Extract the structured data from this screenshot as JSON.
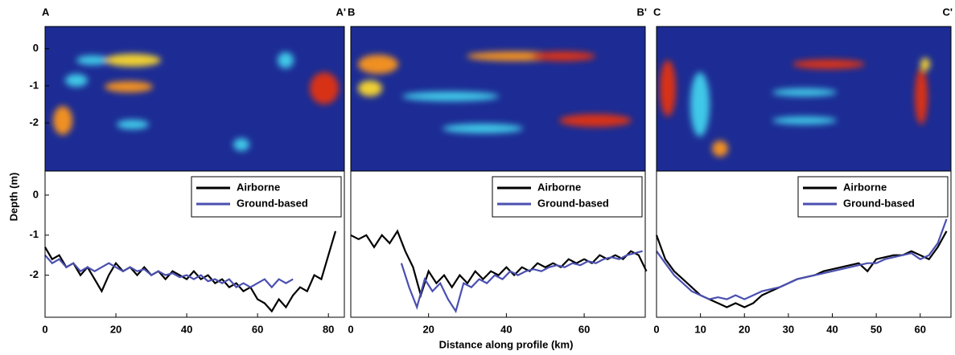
{
  "chart_data": [
    {
      "type": "heatmap",
      "start_label": "A",
      "end_label": "A'",
      "ylabel": "Depth (m)",
      "ylim": [
        -3.3,
        0.6
      ],
      "yticks": [
        0,
        -1,
        -2
      ]
    },
    {
      "type": "line",
      "xlim": [
        0,
        84.5
      ],
      "ylim": [
        -3.05,
        0.6
      ],
      "xticks": [
        0,
        20,
        40,
        60,
        80
      ],
      "yticks": [
        0,
        -1,
        -2
      ],
      "legend": "upper right",
      "series": [
        {
          "name": "Airborne",
          "color": "#000000",
          "x": [
            0,
            2,
            4,
            6,
            8,
            10,
            12,
            14,
            16,
            18,
            20,
            22,
            24,
            26,
            28,
            30,
            32,
            34,
            36,
            38,
            40,
            42,
            44,
            46,
            48,
            50,
            52,
            54,
            56,
            58,
            60,
            62,
            64,
            66,
            68,
            70,
            72,
            74,
            76,
            78,
            80,
            82
          ],
          "values": [
            -1.3,
            -1.6,
            -1.5,
            -1.8,
            -1.7,
            -2.0,
            -1.8,
            -2.1,
            -2.4,
            -2.0,
            -1.7,
            -1.9,
            -1.8,
            -2.0,
            -1.8,
            -2.0,
            -1.9,
            -2.1,
            -1.9,
            -2.0,
            -2.1,
            -1.9,
            -2.1,
            -2.0,
            -2.2,
            -2.1,
            -2.3,
            -2.2,
            -2.4,
            -2.3,
            -2.6,
            -2.7,
            -2.9,
            -2.6,
            -2.8,
            -2.5,
            -2.3,
            -2.4,
            -2.0,
            -2.1,
            -1.5,
            -0.9
          ]
        },
        {
          "name": "Ground-based",
          "color": "#4a4fb0",
          "x": [
            0,
            2,
            4,
            6,
            8,
            10,
            12,
            14,
            16,
            18,
            20,
            22,
            24,
            26,
            28,
            30,
            32,
            34,
            36,
            38,
            40,
            42,
            44,
            46,
            48,
            50,
            52,
            54,
            56,
            58,
            60,
            62,
            64,
            66,
            68,
            70
          ],
          "values": [
            -1.5,
            -1.7,
            -1.6,
            -1.8,
            -1.7,
            -1.9,
            -1.8,
            -1.9,
            -1.8,
            -1.7,
            -1.8,
            -1.9,
            -1.8,
            -1.9,
            -1.85,
            -2.0,
            -1.9,
            -2.0,
            -1.95,
            -2.05,
            -2.0,
            -2.1,
            -2.0,
            -2.15,
            -2.1,
            -2.2,
            -2.1,
            -2.3,
            -2.2,
            -2.3,
            -2.2,
            -2.1,
            -2.3,
            -2.1,
            -2.2,
            -2.1
          ]
        }
      ]
    },
    {
      "type": "heatmap",
      "start_label": "B",
      "end_label": "B'"
    },
    {
      "type": "line",
      "xlim": [
        0,
        75.7
      ],
      "ylim": [
        -3.05,
        0.6
      ],
      "xticks": [
        0,
        20,
        40,
        60
      ],
      "legend": "upper right",
      "xlabel": "Distance along profile (km)",
      "series": [
        {
          "name": "Airborne",
          "color": "#000000",
          "x": [
            0,
            2,
            4,
            6,
            8,
            10,
            12,
            14,
            16,
            18,
            20,
            22,
            24,
            26,
            28,
            30,
            32,
            34,
            36,
            38,
            40,
            42,
            44,
            46,
            48,
            50,
            52,
            54,
            56,
            58,
            60,
            62,
            64,
            66,
            68,
            70,
            72,
            74,
            76
          ],
          "values": [
            -1.0,
            -1.1,
            -1.0,
            -1.3,
            -1.0,
            -1.2,
            -0.9,
            -1.4,
            -1.8,
            -2.5,
            -1.9,
            -2.2,
            -2.0,
            -2.3,
            -2.0,
            -2.2,
            -1.9,
            -2.1,
            -1.9,
            -2.0,
            -1.8,
            -2.0,
            -1.8,
            -1.9,
            -1.7,
            -1.8,
            -1.7,
            -1.8,
            -1.6,
            -1.7,
            -1.6,
            -1.7,
            -1.5,
            -1.6,
            -1.5,
            -1.6,
            -1.4,
            -1.5,
            -1.9
          ]
        },
        {
          "name": "Ground-based",
          "color": "#4a4fb0",
          "x": [
            13,
            15,
            17,
            19,
            21,
            23,
            25,
            27,
            29,
            31,
            33,
            35,
            37,
            39,
            41,
            43,
            45,
            47,
            49,
            51,
            53,
            55,
            57,
            59,
            61,
            63,
            65,
            67,
            69,
            71,
            73,
            75
          ],
          "values": [
            -1.7,
            -2.3,
            -2.8,
            -2.1,
            -2.4,
            -2.2,
            -2.6,
            -2.9,
            -2.2,
            -2.3,
            -2.1,
            -2.2,
            -2.0,
            -2.1,
            -1.9,
            -2.0,
            -1.9,
            -1.85,
            -1.9,
            -1.8,
            -1.75,
            -1.8,
            -1.7,
            -1.75,
            -1.65,
            -1.7,
            -1.6,
            -1.55,
            -1.6,
            -1.5,
            -1.45,
            -1.4
          ]
        }
      ]
    },
    {
      "type": "heatmap",
      "start_label": "C",
      "end_label": "C'"
    },
    {
      "type": "line",
      "xlim": [
        0,
        67
      ],
      "ylim": [
        -3.05,
        0.6
      ],
      "xticks": [
        0,
        10,
        20,
        30,
        40,
        50,
        60
      ],
      "legend": "upper right",
      "series": [
        {
          "name": "Airborne",
          "color": "#000000",
          "x": [
            0,
            2,
            4,
            6,
            8,
            10,
            12,
            14,
            16,
            18,
            20,
            22,
            24,
            26,
            28,
            30,
            32,
            34,
            36,
            38,
            40,
            42,
            44,
            46,
            48,
            50,
            52,
            54,
            56,
            58,
            60,
            62,
            64,
            66
          ],
          "values": [
            -1.0,
            -1.6,
            -1.9,
            -2.1,
            -2.3,
            -2.5,
            -2.6,
            -2.7,
            -2.8,
            -2.7,
            -2.8,
            -2.7,
            -2.5,
            -2.4,
            -2.3,
            -2.2,
            -2.1,
            -2.05,
            -2.0,
            -1.9,
            -1.85,
            -1.8,
            -1.75,
            -1.7,
            -1.9,
            -1.6,
            -1.55,
            -1.5,
            -1.5,
            -1.4,
            -1.5,
            -1.6,
            -1.3,
            -0.9
          ]
        },
        {
          "name": "Ground-based",
          "color": "#4a4fb0",
          "x": [
            0,
            2,
            4,
            6,
            8,
            10,
            12,
            14,
            16,
            18,
            20,
            22,
            24,
            26,
            28,
            30,
            32,
            34,
            36,
            38,
            40,
            42,
            44,
            46,
            48,
            50,
            52,
            54,
            56,
            58,
            60,
            62,
            64,
            66
          ],
          "values": [
            -1.4,
            -1.7,
            -2.0,
            -2.2,
            -2.4,
            -2.5,
            -2.6,
            -2.55,
            -2.6,
            -2.5,
            -2.6,
            -2.5,
            -2.4,
            -2.35,
            -2.3,
            -2.2,
            -2.1,
            -2.05,
            -2.0,
            -1.95,
            -1.9,
            -1.85,
            -1.8,
            -1.75,
            -1.7,
            -1.7,
            -1.6,
            -1.55,
            -1.5,
            -1.45,
            -1.6,
            -1.5,
            -1.2,
            -0.6
          ]
        }
      ]
    }
  ]
}
